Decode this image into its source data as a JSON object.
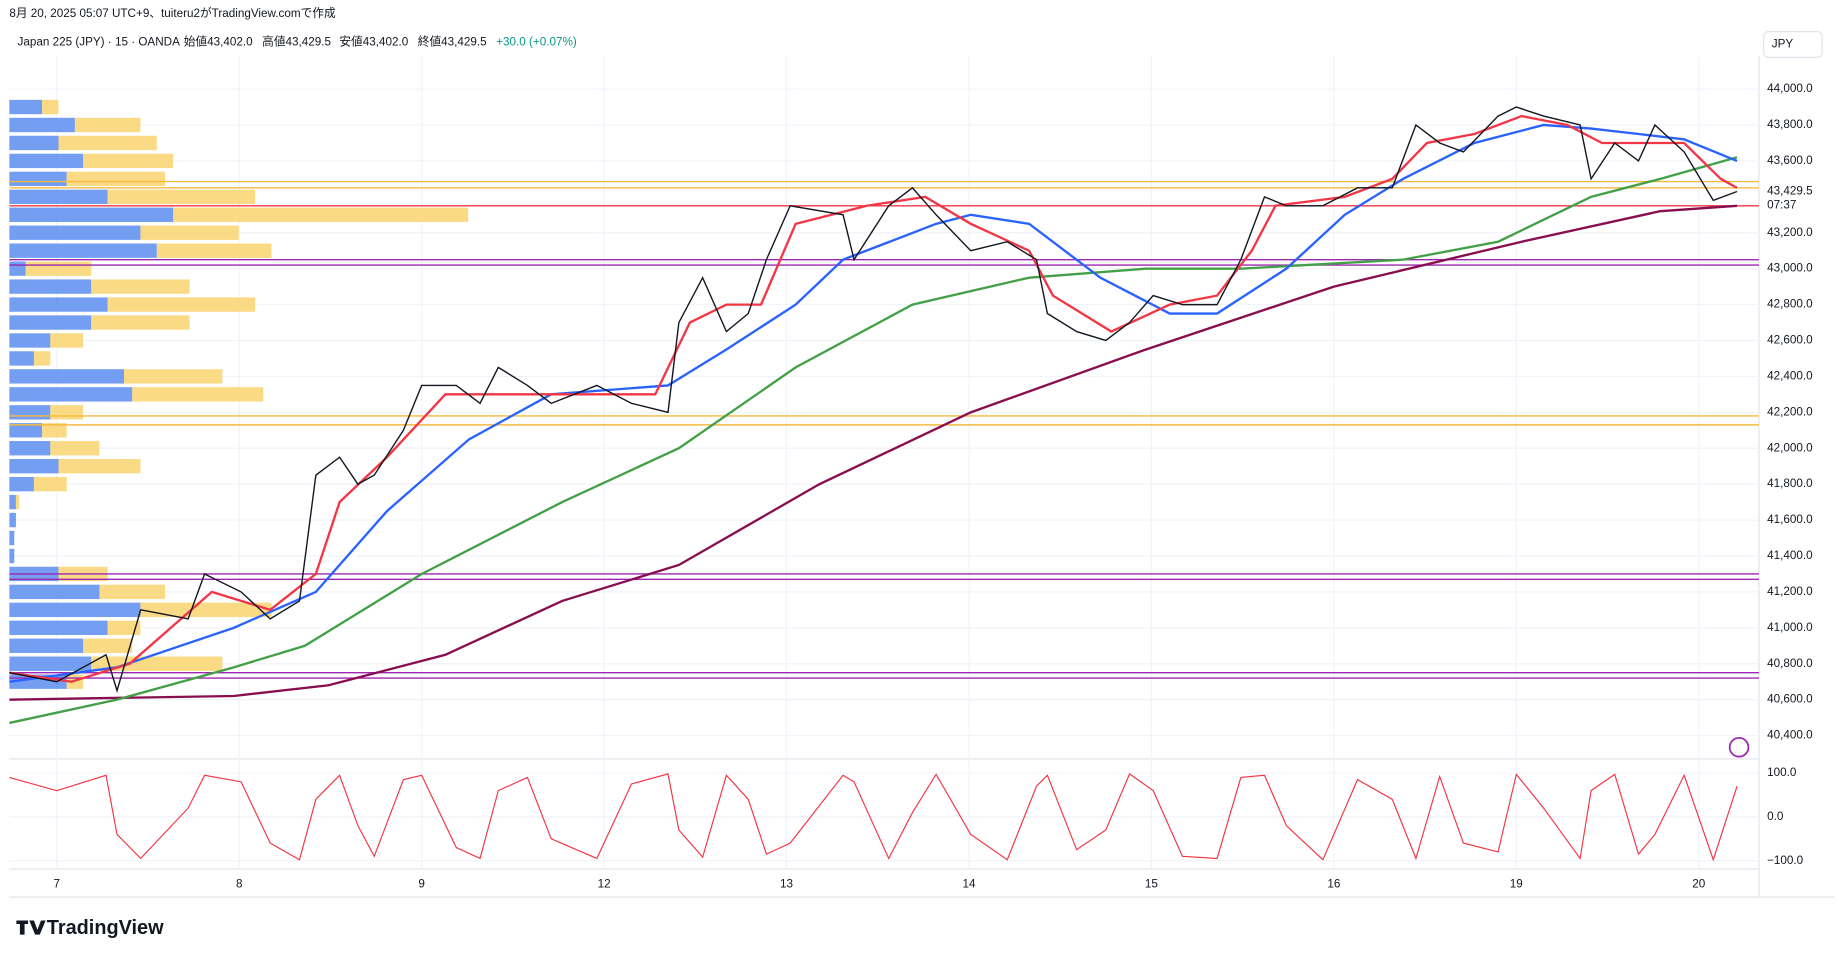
{
  "header": {
    "created": "8月 20, 2025 05:07 UTC+9、tuiteru2がTradingView.comで作成",
    "symbol": "Japan 225 (JPY) · 15 · OANDA",
    "open": "始値43,402.0",
    "high": "高値43,429.5",
    "low": "安値43,402.0",
    "close": "終値43,429.5",
    "change": "+30.0 (+0.07%)",
    "currency": "JPY",
    "logo": "TradingView"
  },
  "chart_data": [
    {
      "type": "line",
      "xlim": [
        -0.26,
        9.33
      ],
      "ylim": [
        40270,
        44183
      ],
      "xticks": [
        {
          "value": 0,
          "label": "7"
        },
        {
          "value": 1,
          "label": "8"
        },
        {
          "value": 2,
          "label": "9"
        },
        {
          "value": 3,
          "label": "12"
        },
        {
          "value": 4,
          "label": "13"
        },
        {
          "value": 5,
          "label": "14"
        },
        {
          "value": 6,
          "label": "15"
        },
        {
          "value": 7,
          "label": "16"
        },
        {
          "value": 8,
          "label": "19"
        },
        {
          "value": 9,
          "label": "20"
        }
      ],
      "yticks": [
        {
          "value": 40400,
          "label": "40,400.0"
        },
        {
          "value": 40600,
          "label": "40,600.0"
        },
        {
          "value": 40800,
          "label": "40,800.0"
        },
        {
          "value": 41000,
          "label": "41,000.0"
        },
        {
          "value": 41200,
          "label": "41,200.0"
        },
        {
          "value": 41400,
          "label": "41,400.0"
        },
        {
          "value": 41600,
          "label": "41,600.0"
        },
        {
          "value": 41800,
          "label": "41,800.0"
        },
        {
          "value": 42000,
          "label": "42,000.0"
        },
        {
          "value": 42200,
          "label": "42,200.0"
        },
        {
          "value": 42400,
          "label": "42,400.0"
        },
        {
          "value": 42600,
          "label": "42,600.0"
        },
        {
          "value": 42800,
          "label": "42,800.0"
        },
        {
          "value": 43000,
          "label": "43,000.0"
        },
        {
          "value": 43200,
          "label": "43,200.0"
        },
        {
          "value": 43600,
          "label": "43,600.0"
        },
        {
          "value": 43800,
          "label": "43,800.0"
        },
        {
          "value": 44000,
          "label": "44,000.0"
        }
      ],
      "grid": true,
      "last_price": {
        "value": 43429.5,
        "label": "43,429.5"
      },
      "countdown": "07:37",
      "series": [
        {
          "color": "#131722",
          "x": [
            -0.26,
            0,
            0.27,
            0.33,
            0.46,
            0.72,
            0.81,
            1.01,
            1.17,
            1.33,
            1.42,
            1.55,
            1.65,
            1.74,
            1.9,
            2.0,
            2.19,
            2.32,
            2.42,
            2.58,
            2.71,
            2.96,
            3.15,
            3.35,
            3.41,
            3.54,
            3.67,
            3.79,
            3.89,
            4.02,
            4.31,
            4.37,
            4.56,
            4.69,
            4.82,
            5.01,
            5.21,
            5.37,
            5.43,
            5.59,
            5.75,
            5.88,
            6.01,
            6.17,
            6.36,
            6.49,
            6.62,
            6.74,
            6.94,
            7.13,
            7.32,
            7.45,
            7.58,
            7.71,
            7.9,
            8.0,
            8.15,
            8.35,
            8.41,
            8.54,
            8.67,
            8.76,
            8.92,
            9.08,
            9.21
          ],
          "values": [
            40750,
            40700,
            40850,
            40650,
            41100,
            41050,
            41300,
            41200,
            41050,
            41150,
            41850,
            41950,
            41800,
            41850,
            42100,
            42350,
            42350,
            42250,
            42450,
            42350,
            42250,
            42350,
            42250,
            42200,
            42700,
            42950,
            42650,
            42750,
            43050,
            43350,
            43300,
            43050,
            43350,
            43450,
            43300,
            43100,
            43150,
            43050,
            42750,
            42650,
            42600,
            42700,
            42850,
            42800,
            42800,
            43050,
            43400,
            43350,
            43350,
            43450,
            43450,
            43800,
            43700,
            43650,
            43850,
            43900,
            43850,
            43800,
            43500,
            43700,
            43600,
            43800,
            43650,
            43380,
            43429.5
          ]
        },
        {
          "color": "#f23645",
          "x": [
            -0.26,
            0.08,
            0.4,
            0.85,
            1.17,
            1.42,
            1.55,
            1.81,
            2.13,
            2.38,
            2.71,
            3.28,
            3.47,
            3.67,
            3.86,
            4.05,
            4.44,
            4.76,
            5.01,
            5.33,
            5.46,
            5.78,
            6.1,
            6.36,
            6.55,
            6.68,
            7.06,
            7.32,
            7.51,
            7.77,
            8.03,
            8.28,
            8.47,
            8.73,
            8.92,
            9.12,
            9.21
          ],
          "values": [
            40750,
            40700,
            40800,
            41200,
            41100,
            41300,
            41700,
            41950,
            42300,
            42300,
            42300,
            42300,
            42700,
            42800,
            42800,
            43250,
            43350,
            43400,
            43250,
            43100,
            42850,
            42650,
            42800,
            42850,
            43100,
            43350,
            43400,
            43500,
            43700,
            43750,
            43850,
            43800,
            43700,
            43700,
            43700,
            43500,
            43450
          ]
        },
        {
          "color": "#2962ff",
          "x": [
            -0.26,
            0.33,
            0.97,
            1.42,
            1.81,
            2.26,
            2.71,
            3.35,
            3.67,
            4.05,
            4.31,
            4.82,
            5.01,
            5.33,
            5.72,
            6.1,
            6.36,
            6.74,
            7.06,
            7.38,
            7.77,
            8.15,
            8.41,
            8.67,
            8.92,
            9.21
          ],
          "values": [
            40700,
            40780,
            41000,
            41200,
            41650,
            42050,
            42300,
            42350,
            42550,
            42800,
            43050,
            43250,
            43300,
            43250,
            42950,
            42750,
            42750,
            43000,
            43300,
            43500,
            43700,
            43800,
            43780,
            43750,
            43720,
            43600
          ]
        },
        {
          "color": "#43a047",
          "x": [
            -0.26,
            0.33,
            0.97,
            1.36,
            2.0,
            2.77,
            3.41,
            4.05,
            4.69,
            5.33,
            5.97,
            6.49,
            7.38,
            7.9,
            8.41,
            8.79,
            9.21
          ],
          "values": [
            40470,
            40600,
            40780,
            40900,
            41300,
            41700,
            42000,
            42450,
            42800,
            42950,
            43000,
            43000,
            43050,
            43150,
            43400,
            43500,
            43620
          ]
        },
        {
          "color": "#880e4f",
          "x": [
            -0.26,
            0.97,
            1.49,
            2.13,
            2.77,
            3.41,
            4.18,
            5.01,
            5.97,
            7.0,
            8.03,
            8.79,
            9.21
          ],
          "values": [
            40600,
            40620,
            40680,
            40850,
            41150,
            41350,
            41800,
            42200,
            42550,
            42900,
            43150,
            43320,
            43350
          ]
        }
      ],
      "levels": [
        {
          "value": 43485,
          "color": "#f5b942"
        },
        {
          "value": 43450,
          "color": "#f5b942"
        },
        {
          "value": 43350,
          "color": "#f23645"
        },
        {
          "value": 43050,
          "color": "#9c27b0"
        },
        {
          "value": 43020,
          "color": "#9c27b0"
        },
        {
          "value": 42180,
          "color": "#f5b942"
        },
        {
          "value": 42130,
          "color": "#f5b942"
        },
        {
          "value": 41300,
          "color": "#9c27b0"
        },
        {
          "value": 41270,
          "color": "#9c27b0"
        },
        {
          "value": 40750,
          "color": "#9c27b0"
        },
        {
          "value": 40720,
          "color": "#9c27b0"
        }
      ],
      "volume_profile": {
        "up_color": "#5b8def",
        "down_color": "#f9d36e",
        "prices": [
          43900,
          43800,
          43700,
          43600,
          43500,
          43400,
          43300,
          43200,
          43100,
          43000,
          42900,
          42800,
          42700,
          42600,
          42500,
          42400,
          42300,
          42200,
          42100,
          42000,
          41900,
          41800,
          41700,
          41600,
          41500,
          41400,
          41300,
          41200,
          41100,
          41000,
          40900,
          40800,
          40700
        ],
        "up": [
          20,
          40,
          30,
          45,
          35,
          60,
          100,
          80,
          90,
          10,
          50,
          60,
          50,
          25,
          15,
          70,
          75,
          25,
          20,
          25,
          30,
          15,
          4,
          4,
          3,
          3,
          30,
          55,
          80,
          60,
          45,
          50,
          35
        ],
        "down": [
          10,
          40,
          60,
          55,
          60,
          90,
          180,
          60,
          70,
          40,
          60,
          90,
          60,
          20,
          10,
          60,
          80,
          20,
          15,
          30,
          50,
          20,
          2,
          0,
          0,
          0,
          30,
          40,
          80,
          20,
          30,
          80,
          10
        ]
      }
    },
    {
      "type": "line",
      "ylim": [
        -119,
        127
      ],
      "yticks": [
        {
          "value": 100,
          "label": "100.0"
        },
        {
          "value": 0,
          "label": "0.0"
        },
        {
          "value": -100,
          "label": "−100.0"
        }
      ],
      "color": "#f23645",
      "values": [
        90,
        60,
        95,
        -40,
        -95,
        20,
        95,
        80,
        -60,
        -98,
        40,
        95,
        -20,
        -90,
        85,
        95,
        -70,
        -95,
        60,
        90,
        -50,
        -95,
        75,
        98,
        -30,
        -92,
        95,
        40,
        -85,
        -60,
        95,
        80,
        -95,
        10,
        97,
        -40,
        -98,
        70,
        95,
        -75,
        -30,
        98,
        60,
        -90,
        -95,
        90,
        95,
        -20,
        -98,
        85,
        40,
        -95,
        92,
        -60,
        -80,
        97,
        20,
        -95,
        60,
        97,
        -85,
        -40,
        95,
        -98,
        70
      ]
    }
  ]
}
